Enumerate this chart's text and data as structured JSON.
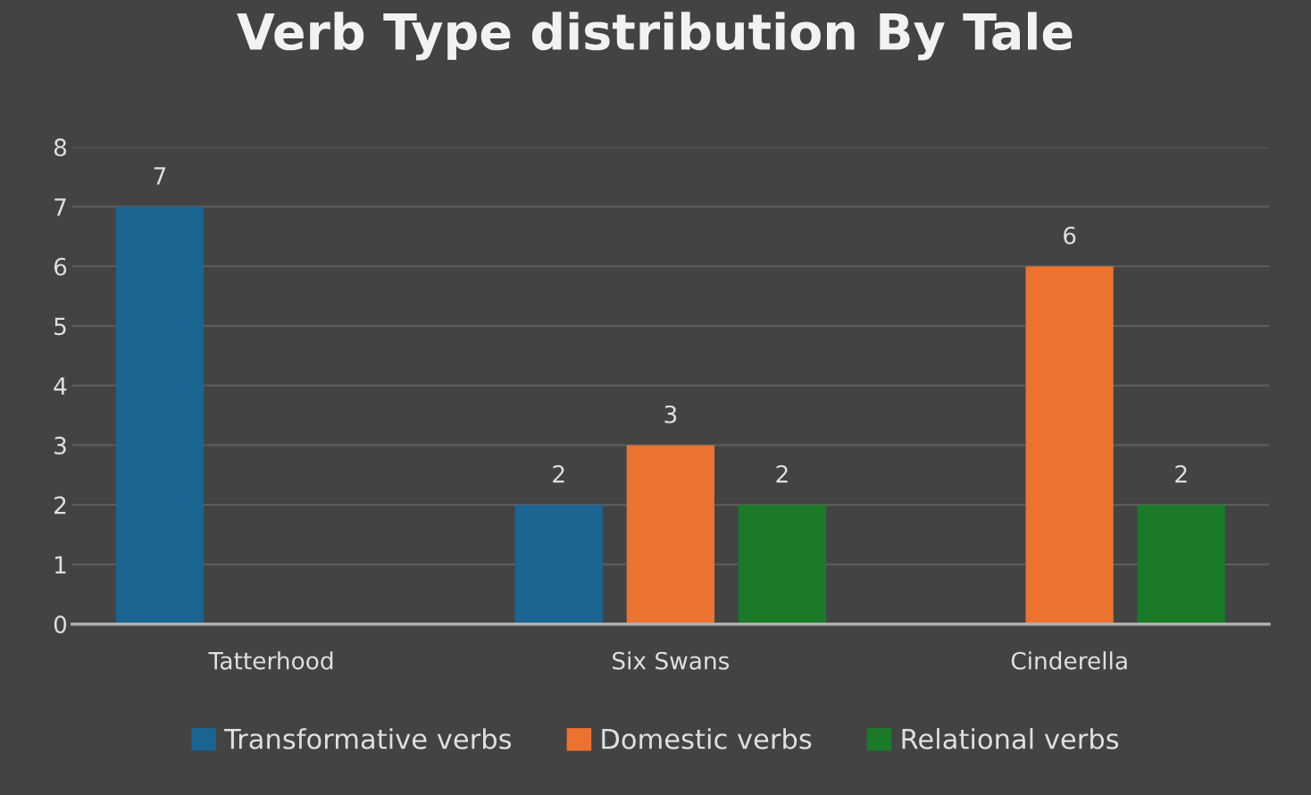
{
  "chart_data": {
    "type": "bar",
    "title": "Verb Type distribution By Tale",
    "categories": [
      "Tatterhood",
      "Six Swans",
      "Cinderella"
    ],
    "series": [
      {
        "name": "Transformative verbs",
        "color": "#1a6592",
        "values": [
          7,
          2,
          null
        ]
      },
      {
        "name": "Domestic verbs",
        "color": "#ec7230",
        "values": [
          null,
          3,
          6
        ]
      },
      {
        "name": "Relational verbs",
        "color": "#1a7a28",
        "values": [
          null,
          2,
          2
        ]
      }
    ],
    "ylim": [
      0,
      8
    ],
    "yticks": [
      0,
      1,
      2,
      3,
      4,
      5,
      6,
      7,
      8
    ],
    "grid": "y",
    "legend": "bottom",
    "data_labels": true
  }
}
